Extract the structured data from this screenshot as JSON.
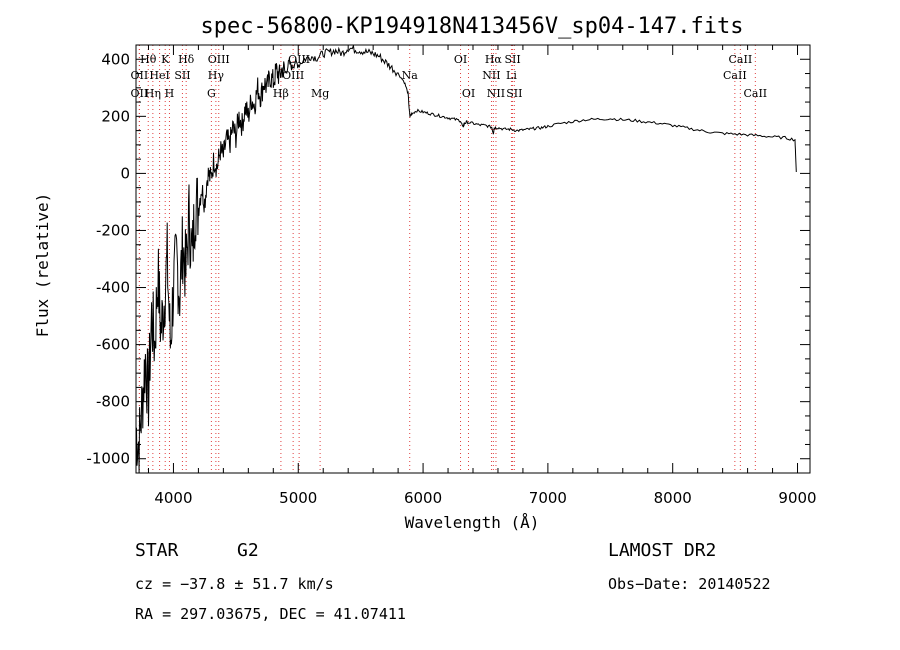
{
  "chart_data": {
    "type": "line",
    "title": "spec-56800-KP194918N413456V_sp04-147.fits",
    "xlabel": "Wavelength (Å)",
    "ylabel": "Flux (relative)",
    "xlim": [
      3700,
      9100
    ],
    "ylim": [
      -1050,
      450
    ],
    "xticks": [
      4000,
      5000,
      6000,
      7000,
      8000,
      9000
    ],
    "yticks": [
      -1000,
      -800,
      -600,
      -400,
      -200,
      0,
      200,
      400
    ],
    "line_color": "#000000",
    "marker_color": "#e04040",
    "series": [
      {
        "x": [
          3700,
          3725,
          3750,
          3775,
          3800,
          3825,
          3850,
          3875,
          3900,
          3925,
          3950,
          3975,
          4000,
          4025,
          4050,
          4075,
          4100,
          4125,
          4150,
          4175,
          4200,
          4225,
          4250,
          4275,
          4300,
          4325,
          4350,
          4375,
          4400,
          4425,
          4450,
          4475,
          4500,
          4525,
          4550,
          4575,
          4600,
          4625,
          4650,
          4675,
          4700,
          4725,
          4750,
          4775,
          4800,
          4825,
          4850,
          4875,
          4900,
          4925,
          4950,
          4975,
          5000,
          5050,
          5100,
          5150,
          5200,
          5250,
          5300,
          5350,
          5400,
          5450,
          5500,
          5550,
          5600,
          5650,
          5700,
          5750,
          5800,
          5850,
          5880,
          5890,
          5895,
          5910,
          5950,
          6000,
          6050,
          6100,
          6150,
          6200,
          6250,
          6300,
          6320,
          6330,
          6350,
          6400,
          6450,
          6500,
          6550,
          6563,
          6570,
          6600,
          6650,
          6700,
          6750,
          6800,
          6850,
          6900,
          6950,
          7000,
          7100,
          7200,
          7300,
          7400,
          7500,
          7600,
          7700,
          7800,
          7900,
          8000,
          8100,
          8200,
          8300,
          8400,
          8500,
          8600,
          8700,
          8800,
          8900,
          8980,
          8990
        ],
        "y": [
          -900,
          -950,
          -800,
          -650,
          -780,
          -500,
          -600,
          -350,
          -550,
          -450,
          -300,
          -600,
          -400,
          -300,
          -420,
          -250,
          -350,
          -150,
          -300,
          -100,
          -120,
          -50,
          -100,
          0,
          -20,
          50,
          20,
          80,
          60,
          120,
          100,
          160,
          130,
          200,
          170,
          230,
          200,
          260,
          240,
          300,
          270,
          320,
          300,
          340,
          320,
          360,
          340,
          370,
          350,
          390,
          370,
          390,
          380,
          400,
          410,
          405,
          420,
          425,
          430,
          420,
          440,
          435,
          430,
          425,
          420,
          410,
          390,
          370,
          350,
          320,
          280,
          220,
          200,
          210,
          220,
          215,
          210,
          205,
          200,
          195,
          190,
          185,
          160,
          175,
          180,
          175,
          170,
          168,
          162,
          140,
          160,
          160,
          155,
          155,
          150,
          152,
          155,
          158,
          160,
          165,
          175,
          182,
          188,
          190,
          192,
          188,
          185,
          180,
          175,
          168,
          160,
          152,
          145,
          140,
          138,
          135,
          132,
          128,
          125,
          118,
          5
        ]
      }
    ],
    "spectral_lines": [
      {
        "label": "Hθ",
        "wl": 3798,
        "row": 1
      },
      {
        "label": "OII",
        "wl": 3727,
        "row": 2
      },
      {
        "label": "OII",
        "wl": 3727,
        "row": 3
      },
      {
        "label": "Hη",
        "wl": 3835,
        "row": 3
      },
      {
        "label": "K",
        "wl": 3934,
        "row": 1
      },
      {
        "label": "HeI",
        "wl": 3889,
        "row": 2
      },
      {
        "label": "H",
        "wl": 3968,
        "row": 3
      },
      {
        "label": "SII",
        "wl": 4072,
        "row": 2
      },
      {
        "label": "Hδ",
        "wl": 4102,
        "row": 1
      },
      {
        "label": "OIII",
        "wl": 4363,
        "row": 1
      },
      {
        "label": "Hγ",
        "wl": 4340,
        "row": 2
      },
      {
        "label": "G",
        "wl": 4304,
        "row": 3
      },
      {
        "label": "OIII",
        "wl": 5007,
        "row": 1
      },
      {
        "label": "OIII",
        "wl": 4959,
        "row": 2
      },
      {
        "label": "Hβ",
        "wl": 4861,
        "row": 3
      },
      {
        "label": "Mg",
        "wl": 5175,
        "row": 3
      },
      {
        "label": "Na",
        "wl": 5893,
        "row": 2
      },
      {
        "label": "OI",
        "wl": 6300,
        "row": 1
      },
      {
        "label": "OI",
        "wl": 6364,
        "row": 3
      },
      {
        "label": "Hα",
        "wl": 6563,
        "row": 1
      },
      {
        "label": "SII",
        "wl": 6717,
        "row": 1
      },
      {
        "label": "NII",
        "wl": 6548,
        "row": 2
      },
      {
        "label": "Li",
        "wl": 6708,
        "row": 2
      },
      {
        "label": "NII",
        "wl": 6584,
        "row": 3
      },
      {
        "label": "SII",
        "wl": 6731,
        "row": 3
      },
      {
        "label": "CaII",
        "wl": 8542,
        "row": 1
      },
      {
        "label": "CaII",
        "wl": 8498,
        "row": 2
      },
      {
        "label": "CaII",
        "wl": 8662,
        "row": 3
      }
    ]
  },
  "info": {
    "class": "STAR",
    "subclass": "G2",
    "survey": "LAMOST DR2",
    "cz": "cz = −37.8 ± 51.7 km/s",
    "obs_date": "Obs−Date: 20140522",
    "radec": "RA = 297.03675, DEC =  41.07411"
  }
}
